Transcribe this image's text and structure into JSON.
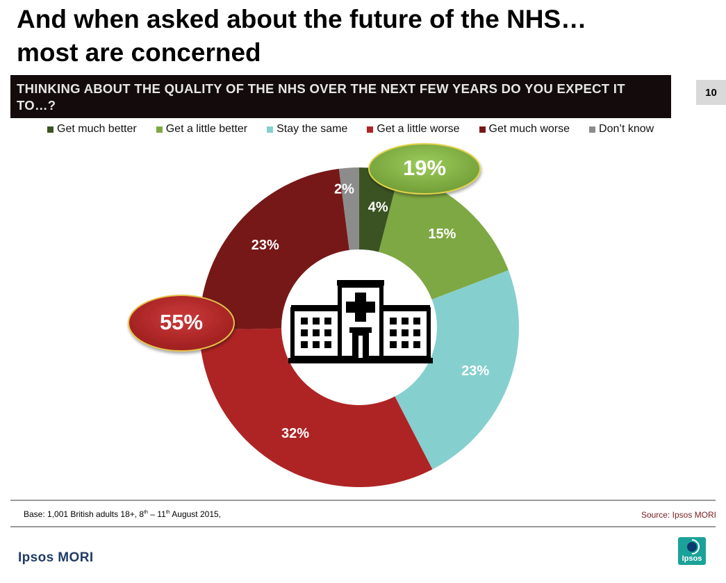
{
  "slide": {
    "title_line1": "And when asked about the future of the NHS…",
    "title_line2": "most are concerned",
    "question": "THINKING ABOUT THE QUALITY OF THE NHS OVER THE NEXT FEW YEARS DO YOU EXPECT IT TO…?",
    "page_number": "10",
    "base_prefix": "Base: 1,001 British adults 18+, 8",
    "base_sup1": "th",
    "base_mid": " – 11",
    "base_sup2": "th",
    "base_suffix": " August 2015,",
    "source": "Source: Ipsos MORI",
    "brand": "Ipsos MORI",
    "logo_text": "Ipsos"
  },
  "chart_data": {
    "type": "pie",
    "donut": true,
    "legend_position": "top",
    "categories": [
      "Get much better",
      "Get a little better",
      "Stay the same",
      "Get a little worse",
      "Get much worse",
      "Don’t know"
    ],
    "values": [
      4,
      15,
      23,
      32,
      23,
      2
    ],
    "labels": [
      "4%",
      "15%",
      "23%",
      "32%",
      "23%",
      "2%"
    ],
    "colors": [
      "#3b5323",
      "#7ea843",
      "#86cfcf",
      "#ae2424",
      "#771818",
      "#8c8c8c"
    ],
    "annotations": [
      {
        "text": "19%",
        "color": "#7ea843"
      },
      {
        "text": "55%",
        "color": "#ae2424"
      }
    ],
    "center_icon": "hospital-icon"
  }
}
